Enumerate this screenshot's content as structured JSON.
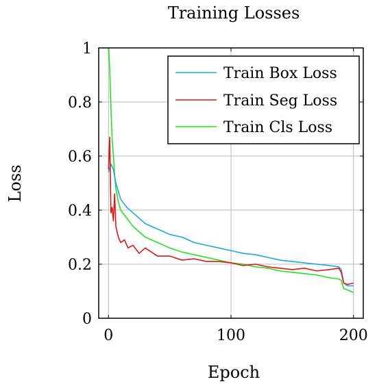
{
  "chart_data": {
    "type": "line",
    "title": "Training Losses",
    "xlabel": "Epoch",
    "ylabel": "Loss",
    "xlim": [
      -8,
      208
    ],
    "ylim": [
      0,
      1
    ],
    "xticks": [
      0,
      100,
      200
    ],
    "yticks": [
      0,
      0.2,
      0.4,
      0.6,
      0.8,
      1
    ],
    "ytick_labels": [
      "0",
      "0.2",
      "0.4",
      "0.6",
      "0.8",
      "1"
    ],
    "grid": true,
    "legend": {
      "position": "top-right"
    },
    "series": [
      {
        "name": "Train Box Loss",
        "color": "#1aa7e6",
        "x": [
          0,
          2,
          4,
          6,
          8,
          10,
          15,
          20,
          25,
          30,
          40,
          50,
          60,
          70,
          80,
          90,
          100,
          110,
          120,
          130,
          140,
          150,
          160,
          170,
          180,
          188,
          190,
          192,
          195,
          200
        ],
        "y": [
          0.54,
          0.57,
          0.55,
          0.5,
          0.47,
          0.44,
          0.41,
          0.39,
          0.37,
          0.35,
          0.33,
          0.31,
          0.3,
          0.28,
          0.27,
          0.26,
          0.25,
          0.24,
          0.235,
          0.225,
          0.215,
          0.21,
          0.205,
          0.2,
          0.195,
          0.19,
          0.18,
          0.13,
          0.12,
          0.12
        ]
      },
      {
        "name": "Train Seg Loss",
        "color": "#e11414",
        "x": [
          0,
          1,
          2,
          3,
          4,
          5,
          6,
          8,
          10,
          13,
          16,
          20,
          25,
          30,
          40,
          50,
          60,
          70,
          80,
          90,
          100,
          110,
          120,
          130,
          140,
          150,
          160,
          170,
          180,
          188,
          190,
          192,
          195,
          200
        ],
        "y": [
          0.55,
          0.67,
          0.39,
          0.41,
          0.36,
          0.46,
          0.34,
          0.3,
          0.28,
          0.29,
          0.26,
          0.27,
          0.24,
          0.26,
          0.23,
          0.23,
          0.215,
          0.22,
          0.21,
          0.21,
          0.205,
          0.195,
          0.2,
          0.19,
          0.185,
          0.18,
          0.185,
          0.175,
          0.18,
          0.185,
          0.17,
          0.13,
          0.125,
          0.13
        ]
      },
      {
        "name": "Train Cls Loss",
        "color": "#1ee61e",
        "x": [
          0,
          1,
          2,
          3,
          4,
          5,
          6,
          8,
          10,
          15,
          20,
          25,
          30,
          40,
          50,
          60,
          70,
          80,
          90,
          100,
          110,
          120,
          130,
          140,
          150,
          160,
          170,
          180,
          188,
          190,
          192,
          195,
          200
        ],
        "y": [
          1.02,
          0.92,
          0.78,
          0.66,
          0.6,
          0.53,
          0.48,
          0.43,
          0.4,
          0.37,
          0.34,
          0.32,
          0.3,
          0.28,
          0.26,
          0.245,
          0.235,
          0.225,
          0.215,
          0.205,
          0.2,
          0.19,
          0.185,
          0.175,
          0.17,
          0.165,
          0.16,
          0.15,
          0.145,
          0.14,
          0.11,
          0.105,
          0.095
        ]
      }
    ]
  }
}
